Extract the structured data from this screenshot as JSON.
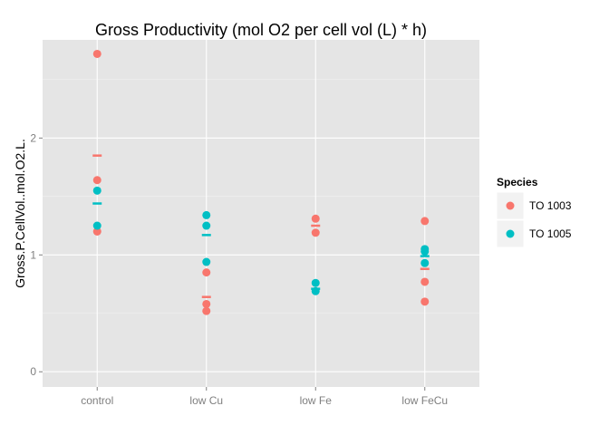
{
  "chart_data": {
    "type": "scatter",
    "title": "Gross Productivity (mol O2 per cell vol (L) * h)",
    "xlabel": "",
    "ylabel": "Gross.P.CellVol..mol.O2.L.",
    "categories": [
      "control",
      "low Cu",
      "low Fe",
      "low FeCu"
    ],
    "ylim": [
      -0.13,
      2.84
    ],
    "yticks": [
      0,
      1,
      2
    ],
    "grid": true,
    "legend": {
      "title": "Species",
      "placement": "right",
      "items": [
        {
          "label": "TO 1003",
          "color": "#F8766D"
        },
        {
          "label": "TO 1005",
          "color": "#00BFC4"
        }
      ]
    },
    "series": [
      {
        "name": "TO 1003",
        "color": "#F8766D",
        "points": [
          {
            "x": "control",
            "y": 2.72
          },
          {
            "x": "control",
            "y": 1.64
          },
          {
            "x": "control",
            "y": 1.2
          },
          {
            "x": "low Cu",
            "y": 0.85
          },
          {
            "x": "low Cu",
            "y": 0.58
          },
          {
            "x": "low Cu",
            "y": 0.52
          },
          {
            "x": "low Fe",
            "y": 1.31
          },
          {
            "x": "low Fe",
            "y": 1.19
          },
          {
            "x": "low FeCu",
            "y": 1.29
          },
          {
            "x": "low FeCu",
            "y": 0.77
          },
          {
            "x": "low FeCu",
            "y": 0.6
          }
        ],
        "means": [
          {
            "x": "control",
            "y": 1.85
          },
          {
            "x": "low Cu",
            "y": 0.64
          },
          {
            "x": "low Fe",
            "y": 1.25
          },
          {
            "x": "low FeCu",
            "y": 0.88
          }
        ]
      },
      {
        "name": "TO 1005",
        "color": "#00BFC4",
        "points": [
          {
            "x": "control",
            "y": 1.55
          },
          {
            "x": "control",
            "y": 1.25
          },
          {
            "x": "low Cu",
            "y": 1.34
          },
          {
            "x": "low Cu",
            "y": 1.25
          },
          {
            "x": "low Cu",
            "y": 0.94
          },
          {
            "x": "low Fe",
            "y": 0.76
          },
          {
            "x": "low Fe",
            "y": 0.69
          },
          {
            "x": "low FeCu",
            "y": 1.05
          },
          {
            "x": "low FeCu",
            "y": 1.03
          },
          {
            "x": "low FeCu",
            "y": 0.93
          }
        ],
        "means": [
          {
            "x": "control",
            "y": 1.44
          },
          {
            "x": "low Cu",
            "y": 1.17
          },
          {
            "x": "low Fe",
            "y": 0.71
          },
          {
            "x": "low FeCu",
            "y": 0.99
          }
        ]
      }
    ]
  }
}
